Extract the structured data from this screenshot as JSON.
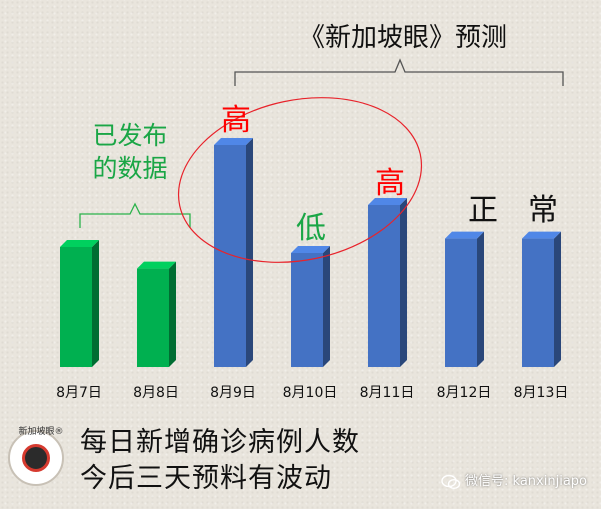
{
  "chart_data": {
    "type": "bar",
    "categories": [
      "8月7日",
      "8月8日",
      "8月9日",
      "8月10日",
      "8月11日",
      "8月12日",
      "8月13日"
    ],
    "values": [
      100,
      82,
      185,
      95,
      135,
      107,
      107
    ],
    "ylim": [
      0,
      200
    ],
    "colors": [
      "#00b050",
      "#00b050",
      "#4472c4",
      "#4472c4",
      "#4472c4",
      "#4472c4",
      "#4472c4"
    ],
    "annotations": {
      "forecast_label": "《新加坡眼》预测",
      "published_label_line1": "已发布",
      "published_label_line2": "的数据",
      "bar_labels": [
        "",
        "",
        "高",
        "低",
        "高",
        "正",
        "常"
      ]
    }
  },
  "colors": {
    "published": "#00b050",
    "forecast": "#4472c4",
    "high": "#ff0000",
    "low": "#00b050",
    "normal": "#111111"
  },
  "footer": {
    "logo_text": "新加坡眼®",
    "caption_line1": "每日新增确诊病例人数",
    "caption_line2": "今后三天预料有波动",
    "wechat": "微信号: kanxinjiapo"
  }
}
